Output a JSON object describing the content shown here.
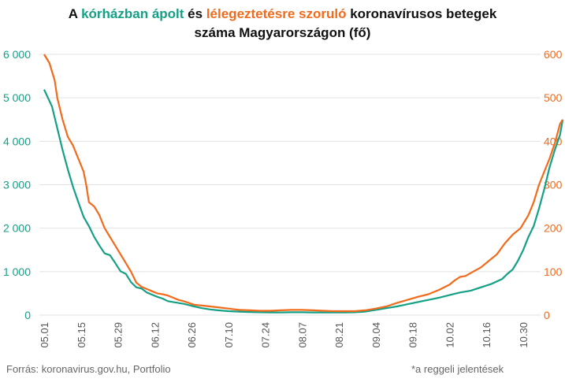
{
  "title": {
    "part1": "A",
    "hospital_phrase": "kórházban ápolt",
    "part2": "és",
    "vent_phrase": "lélegeztetésre szoruló",
    "part3": "koronavírusos betegek",
    "line2": "száma Magyarországon  (fő)"
  },
  "footer": {
    "source": "Forrás: koronavirus.gov.hu, Portfolio",
    "note": "*a reggeli jelentések"
  },
  "colors": {
    "hospital": "#14a085",
    "ventilator": "#f26a1b",
    "grid": "#e3e3e3"
  },
  "chart_data": {
    "type": "line",
    "x_start": "05.01",
    "x_tick_labels": [
      "05.01",
      "05.15",
      "05.29",
      "06.12",
      "06.26",
      "07.10",
      "07.24",
      "08.07",
      "08.21",
      "09.04",
      "09.18",
      "10.02",
      "10.16",
      "10.30"
    ],
    "x_tick_day_offsets": [
      0,
      14,
      28,
      42,
      56,
      70,
      84,
      98,
      112,
      126,
      140,
      154,
      168,
      182
    ],
    "x_range_days": [
      0,
      188
    ],
    "y_left": {
      "label": "kórházban ápolt",
      "range": [
        0,
        6000
      ],
      "ticks": [
        "0",
        "1 000",
        "2 000",
        "3 000",
        "4 000",
        "5 000",
        "6 000"
      ]
    },
    "y_right": {
      "label": "lélegeztetésre szoruló",
      "range": [
        0,
        600
      ],
      "ticks": [
        "0",
        "100",
        "200",
        "300",
        "400",
        "500",
        "600"
      ]
    },
    "grid": "horizontal",
    "series": [
      {
        "name": "kórházban ápolt",
        "axis": "left",
        "points": [
          [
            0,
            5190
          ],
          [
            3,
            4800
          ],
          [
            5,
            4300
          ],
          [
            7,
            3800
          ],
          [
            9,
            3350
          ],
          [
            11,
            2950
          ],
          [
            13,
            2600
          ],
          [
            15,
            2260
          ],
          [
            17,
            2050
          ],
          [
            19,
            1800
          ],
          [
            21,
            1600
          ],
          [
            23,
            1420
          ],
          [
            25,
            1380
          ],
          [
            27,
            1200
          ],
          [
            29,
            1010
          ],
          [
            31,
            950
          ],
          [
            33,
            760
          ],
          [
            35,
            640
          ],
          [
            37,
            610
          ],
          [
            39,
            520
          ],
          [
            41,
            470
          ],
          [
            43,
            420
          ],
          [
            45,
            380
          ],
          [
            47,
            320
          ],
          [
            49,
            300
          ],
          [
            51,
            280
          ],
          [
            53,
            260
          ],
          [
            55,
            230
          ],
          [
            57,
            200
          ],
          [
            60,
            160
          ],
          [
            63,
            130
          ],
          [
            66,
            110
          ],
          [
            70,
            90
          ],
          [
            74,
            80
          ],
          [
            78,
            70
          ],
          [
            82,
            65
          ],
          [
            86,
            62
          ],
          [
            90,
            62
          ],
          [
            94,
            65
          ],
          [
            98,
            65
          ],
          [
            102,
            62
          ],
          [
            106,
            60
          ],
          [
            110,
            60
          ],
          [
            114,
            62
          ],
          [
            118,
            65
          ],
          [
            122,
            80
          ],
          [
            126,
            120
          ],
          [
            130,
            160
          ],
          [
            134,
            200
          ],
          [
            138,
            250
          ],
          [
            142,
            300
          ],
          [
            146,
            350
          ],
          [
            150,
            400
          ],
          [
            154,
            460
          ],
          [
            158,
            520
          ],
          [
            162,
            560
          ],
          [
            166,
            640
          ],
          [
            170,
            720
          ],
          [
            174,
            830
          ],
          [
            176,
            950
          ],
          [
            178,
            1050
          ],
          [
            180,
            1250
          ],
          [
            182,
            1500
          ],
          [
            184,
            1800
          ],
          [
            186,
            2050
          ],
          [
            188,
            2450
          ],
          [
            190,
            2900
          ],
          [
            192,
            3400
          ],
          [
            194,
            3800
          ],
          [
            196,
            4150
          ],
          [
            197,
            4500
          ]
        ]
      },
      {
        "name": "lélegeztetésre szoruló",
        "axis": "right",
        "points": [
          [
            0,
            600
          ],
          [
            2,
            580
          ],
          [
            4,
            540
          ],
          [
            5,
            500
          ],
          [
            7,
            450
          ],
          [
            9,
            410
          ],
          [
            11,
            390
          ],
          [
            13,
            360
          ],
          [
            15,
            330
          ],
          [
            16,
            300
          ],
          [
            17,
            260
          ],
          [
            19,
            250
          ],
          [
            21,
            230
          ],
          [
            23,
            200
          ],
          [
            25,
            180
          ],
          [
            27,
            160
          ],
          [
            29,
            140
          ],
          [
            31,
            120
          ],
          [
            33,
            100
          ],
          [
            35,
            75
          ],
          [
            37,
            65
          ],
          [
            39,
            60
          ],
          [
            41,
            55
          ],
          [
            43,
            50
          ],
          [
            45,
            48
          ],
          [
            47,
            45
          ],
          [
            49,
            40
          ],
          [
            51,
            35
          ],
          [
            53,
            32
          ],
          [
            55,
            28
          ],
          [
            57,
            24
          ],
          [
            60,
            22
          ],
          [
            63,
            20
          ],
          [
            66,
            18
          ],
          [
            70,
            15
          ],
          [
            74,
            12
          ],
          [
            78,
            11
          ],
          [
            82,
            10
          ],
          [
            86,
            10
          ],
          [
            90,
            11
          ],
          [
            94,
            12
          ],
          [
            98,
            12
          ],
          [
            102,
            11
          ],
          [
            106,
            10
          ],
          [
            110,
            9
          ],
          [
            114,
            9
          ],
          [
            118,
            9
          ],
          [
            122,
            11
          ],
          [
            126,
            15
          ],
          [
            130,
            20
          ],
          [
            134,
            28
          ],
          [
            138,
            35
          ],
          [
            142,
            42
          ],
          [
            146,
            48
          ],
          [
            150,
            58
          ],
          [
            154,
            70
          ],
          [
            156,
            80
          ],
          [
            158,
            88
          ],
          [
            160,
            90
          ],
          [
            163,
            100
          ],
          [
            166,
            110
          ],
          [
            169,
            125
          ],
          [
            172,
            140
          ],
          [
            175,
            165
          ],
          [
            178,
            185
          ],
          [
            181,
            200
          ],
          [
            184,
            230
          ],
          [
            186,
            260
          ],
          [
            188,
            300
          ],
          [
            190,
            330
          ],
          [
            192,
            360
          ],
          [
            194,
            395
          ],
          [
            196,
            440
          ],
          [
            197,
            450
          ]
        ]
      }
    ]
  }
}
